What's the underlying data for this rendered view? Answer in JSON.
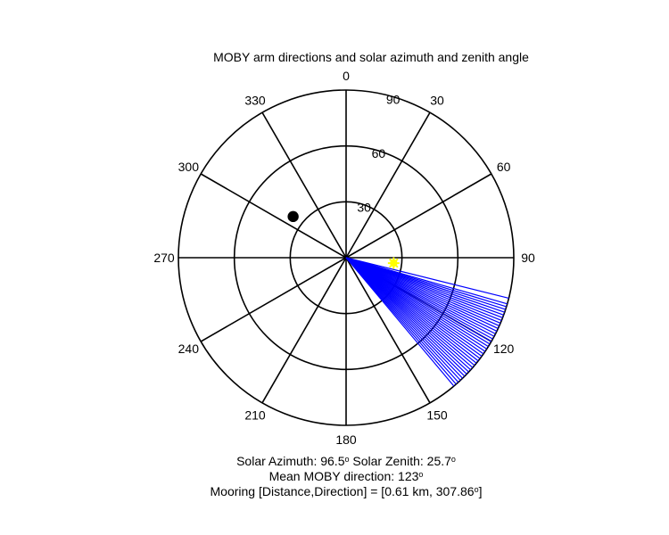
{
  "chart_data": {
    "type": "polar",
    "title": "MOBY arm directions and solar azimuth and zenith angle",
    "angle_zero": "top",
    "angle_direction": "clockwise",
    "radial_max": 90,
    "radial_ticks": [
      {
        "value": 30,
        "label": "30"
      },
      {
        "value": 60,
        "label": "60"
      },
      {
        "value": 90,
        "label": "90"
      }
    ],
    "angle_ticks": [
      {
        "value": 0,
        "label": "0"
      },
      {
        "value": 30,
        "label": "30"
      },
      {
        "value": 60,
        "label": "60"
      },
      {
        "value": 90,
        "label": "90"
      },
      {
        "value": 120,
        "label": "120"
      },
      {
        "value": 150,
        "label": "150"
      },
      {
        "value": 180,
        "label": "180"
      },
      {
        "value": 210,
        "label": "210"
      },
      {
        "value": 240,
        "label": "240"
      },
      {
        "value": 270,
        "label": "270"
      },
      {
        "value": 300,
        "label": "300"
      },
      {
        "value": 330,
        "label": "330"
      }
    ],
    "moby_arm_directions": [
      104,
      106,
      107,
      108,
      109,
      110,
      111,
      112,
      113,
      114,
      115,
      116,
      117,
      118,
      119,
      120,
      121,
      122,
      123,
      124,
      125,
      126,
      127,
      128,
      129,
      130,
      131,
      132,
      133,
      134,
      135,
      136,
      137,
      138,
      139,
      140
    ],
    "moby_arm_radius": 90,
    "moby_color": "#0000ff",
    "sun": {
      "azimuth": 96.5,
      "zenith": 25.7,
      "color": "#ffff00"
    },
    "mooring": {
      "direction": 307.86,
      "radius": 36,
      "color": "#000000"
    },
    "info_lines": [
      {
        "main": "Solar Azimuth: 96.5",
        "deg": "o",
        "rest": "   Solar Zenith: 25.7",
        "deg2": "o"
      },
      {
        "main": "Mean MOBY direction: 123",
        "deg": "o",
        "rest": "",
        "deg2": ""
      },
      {
        "main": "Mooring [Distance,Direction] = [0.61 km, 307.86",
        "deg": "o",
        "rest": "]",
        "deg2": ""
      }
    ]
  }
}
